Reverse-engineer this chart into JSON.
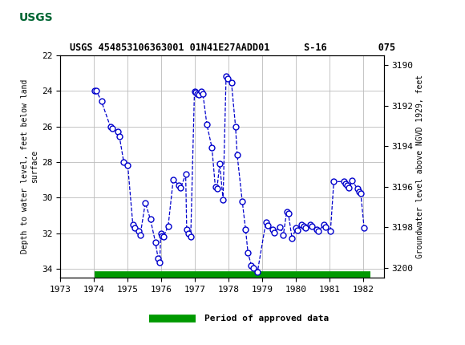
{
  "title": "USGS 454853106363001 01N41E27AADD01      S-16         075",
  "ylabel_left": "Depth to water level, feet below land\nsurface",
  "ylabel_right": "Groundwater level above NGVD 1929, feet",
  "ylim_left": [
    22,
    34.5
  ],
  "ylim_right": [
    3189.5,
    3200.5
  ],
  "xlim": [
    1973.0,
    1982.6
  ],
  "xticks": [
    1973,
    1974,
    1975,
    1976,
    1977,
    1978,
    1979,
    1980,
    1981,
    1982
  ],
  "yticks_left": [
    22,
    24,
    26,
    28,
    30,
    32,
    34
  ],
  "yticks_right": [
    3190,
    3192,
    3194,
    3196,
    3198,
    3200
  ],
  "data_x": [
    1974.02,
    1974.07,
    1974.22,
    1974.48,
    1974.53,
    1974.7,
    1974.75,
    1974.88,
    1975.0,
    1975.15,
    1975.2,
    1975.32,
    1975.37,
    1975.52,
    1975.67,
    1975.82,
    1975.9,
    1975.95,
    1975.98,
    1976.02,
    1976.06,
    1976.2,
    1976.35,
    1976.52,
    1976.57,
    1976.72,
    1976.75,
    1976.8,
    1976.87,
    1976.98,
    1977.02,
    1977.06,
    1977.1,
    1977.18,
    1977.23,
    1977.35,
    1977.5,
    1977.6,
    1977.65,
    1977.73,
    1977.83,
    1977.92,
    1977.97,
    1978.08,
    1978.2,
    1978.25,
    1978.4,
    1978.5,
    1978.57,
    1978.67,
    1978.72,
    1978.85,
    1979.1,
    1979.15,
    1979.3,
    1979.35,
    1979.52,
    1979.62,
    1979.72,
    1979.77,
    1979.88,
    1980.0,
    1980.05,
    1980.17,
    1980.22,
    1980.27,
    1980.42,
    1980.47,
    1980.62,
    1980.67,
    1980.82,
    1980.87,
    1981.02,
    1981.12,
    1981.42,
    1981.47,
    1981.52,
    1981.57,
    1981.67,
    1981.82,
    1981.87,
    1981.92,
    1982.02
  ],
  "data_y": [
    24.0,
    24.0,
    24.6,
    26.0,
    26.1,
    26.3,
    26.55,
    28.0,
    28.2,
    31.5,
    31.7,
    31.9,
    32.1,
    30.3,
    31.2,
    32.5,
    33.4,
    33.65,
    32.0,
    32.15,
    32.2,
    31.6,
    29.0,
    29.3,
    29.45,
    28.7,
    31.8,
    32.0,
    32.2,
    24.05,
    24.1,
    24.15,
    24.2,
    24.05,
    24.15,
    25.9,
    27.2,
    29.4,
    29.5,
    28.1,
    30.1,
    23.2,
    23.3,
    23.55,
    26.0,
    27.6,
    30.2,
    31.8,
    33.1,
    33.8,
    33.95,
    34.2,
    31.4,
    31.55,
    31.8,
    31.95,
    31.65,
    32.1,
    30.8,
    30.9,
    32.3,
    31.7,
    31.85,
    31.5,
    31.6,
    31.7,
    31.5,
    31.6,
    31.8,
    31.9,
    31.5,
    31.65,
    31.9,
    29.1,
    29.1,
    29.2,
    29.3,
    29.45,
    29.05,
    29.5,
    29.65,
    29.75,
    31.7
  ],
  "line_color": "#0000CC",
  "marker_color": "#0000CC",
  "marker_face": "white",
  "grid_color": "#BBBBBB",
  "bg_color": "#FFFFFF",
  "header_bg": "#006633",
  "legend_label": "Period of approved data",
  "legend_color": "#009900",
  "approved_bar_xstart": 1974.02,
  "approved_bar_xend": 1982.2
}
